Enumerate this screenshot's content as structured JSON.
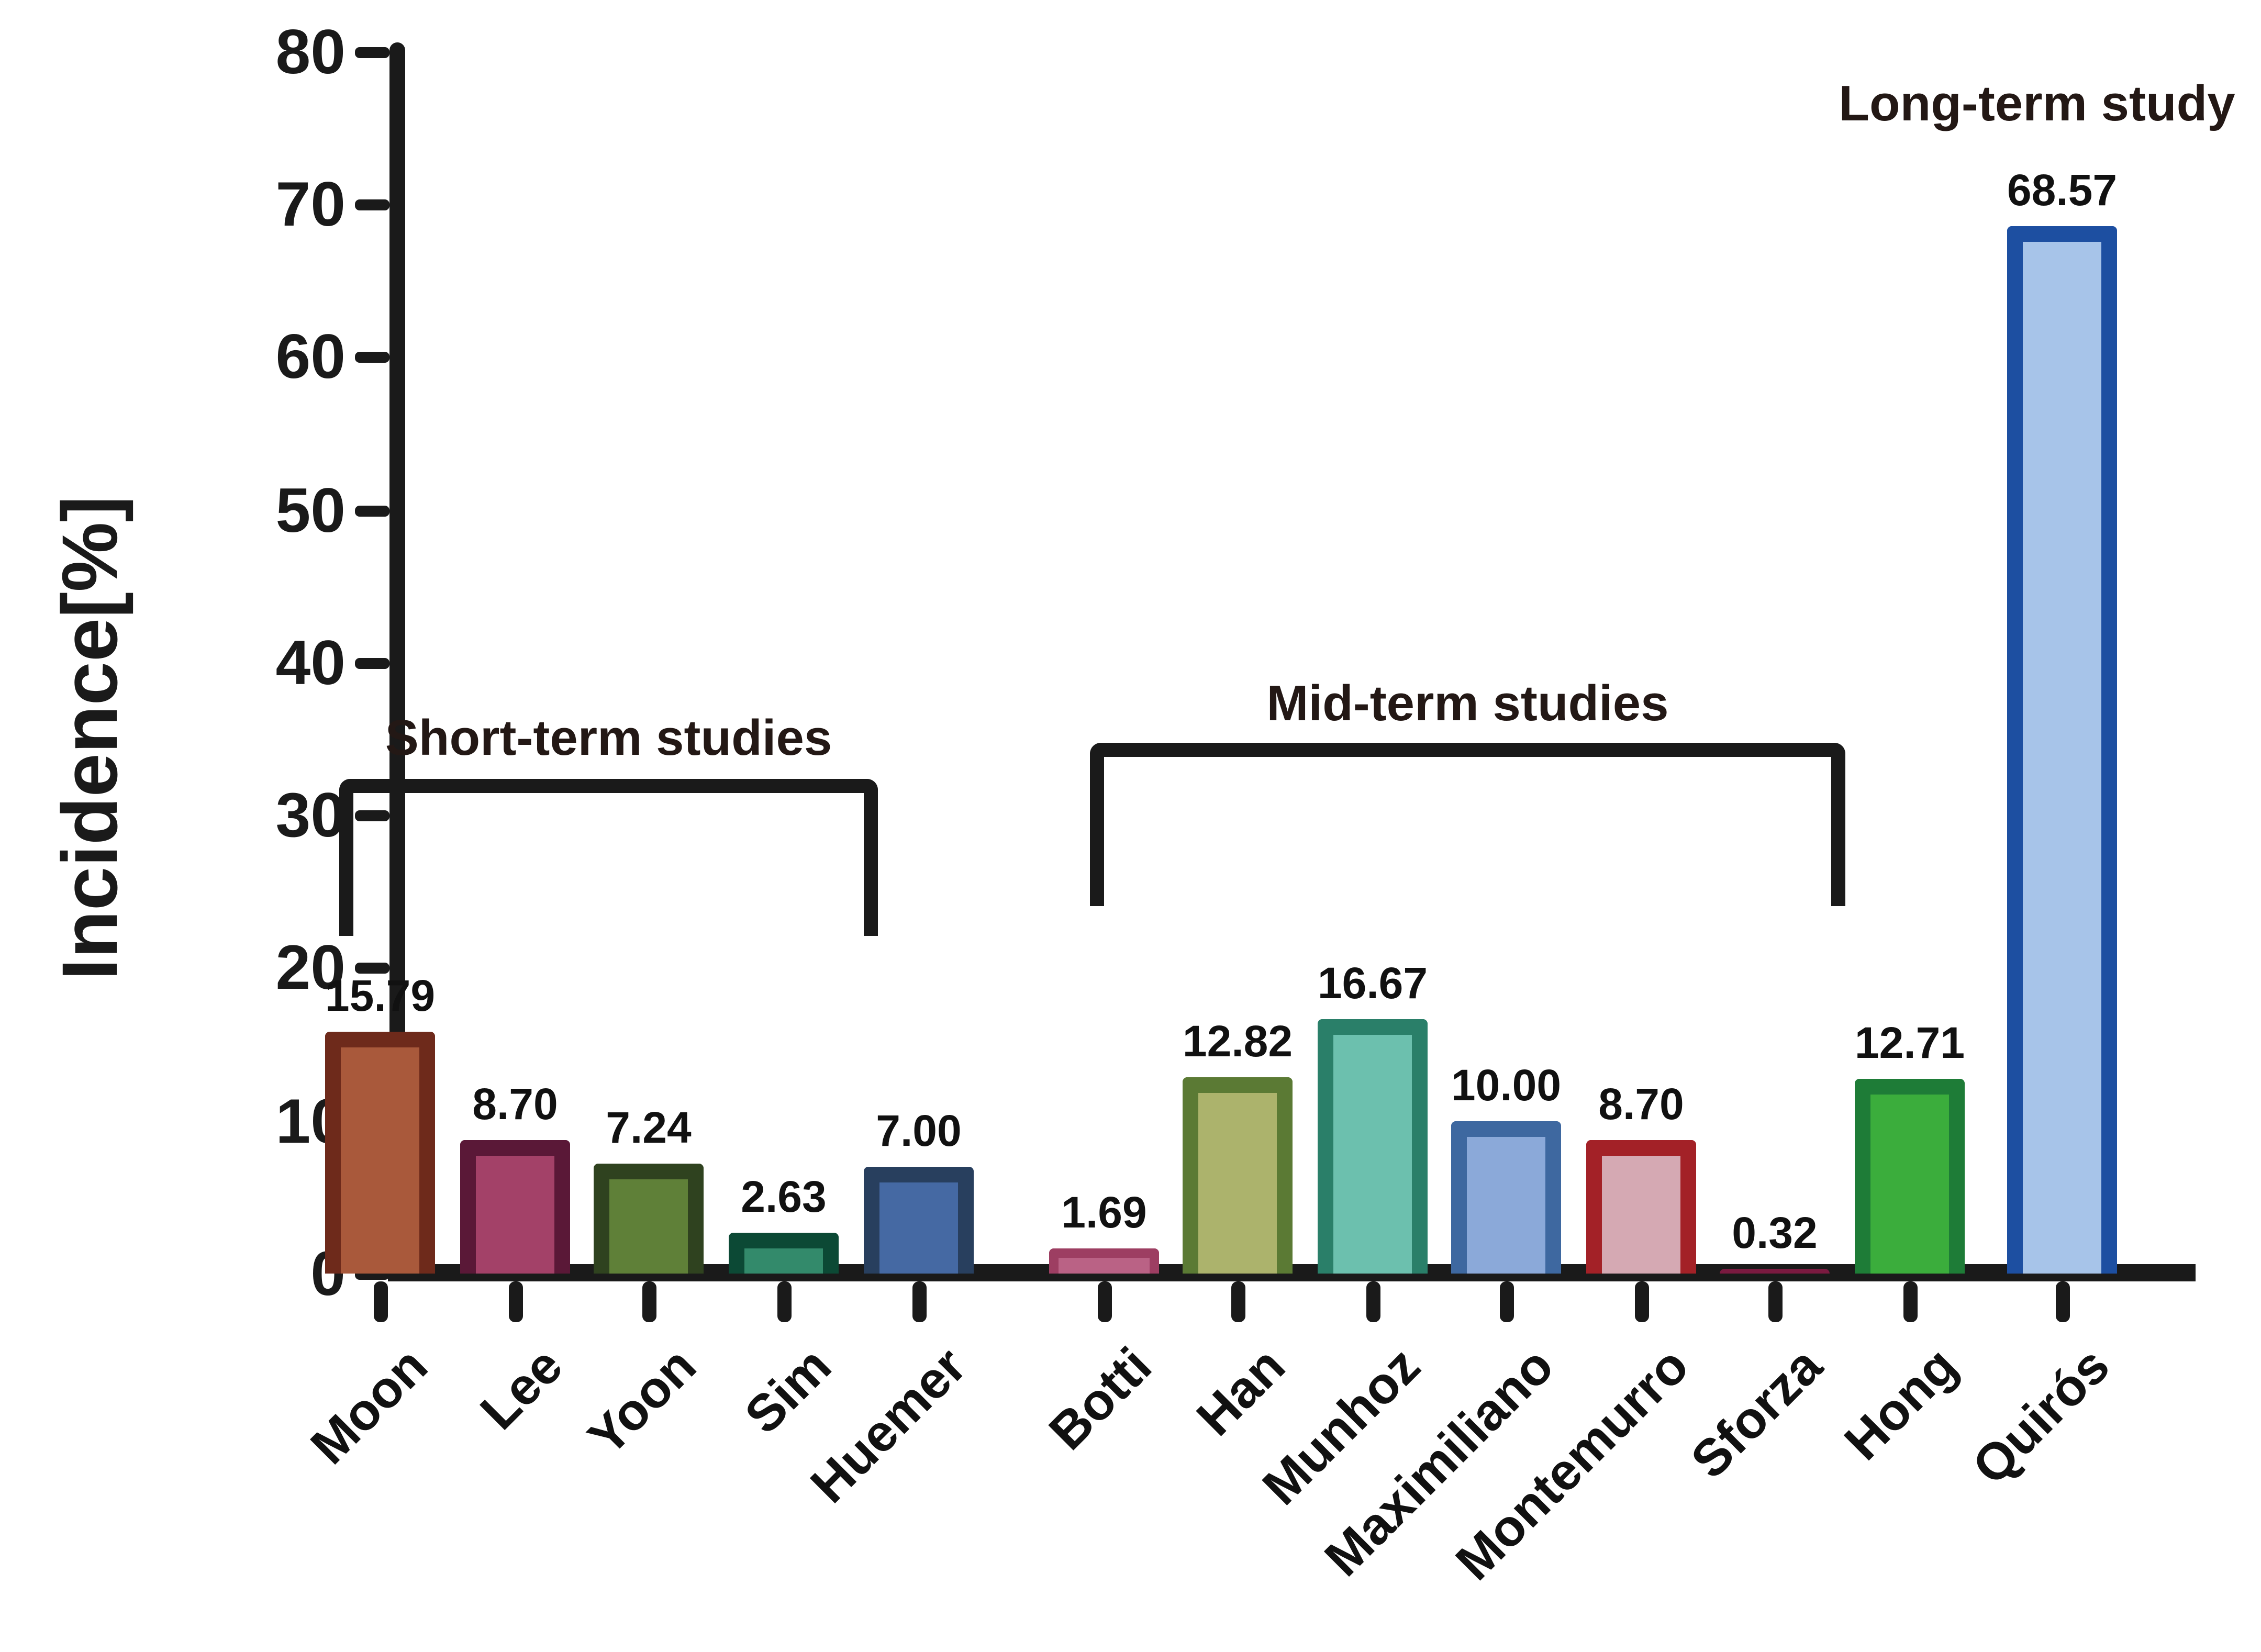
{
  "chart_data": {
    "type": "bar",
    "title": "",
    "xlabel": "",
    "ylabel": "Incidence[%]",
    "ylim": [
      0,
      80
    ],
    "yticks": [
      0,
      10,
      20,
      30,
      40,
      50,
      60,
      70,
      80
    ],
    "grid": false,
    "legend": false,
    "bar_style": "thick dark outline with lighter interior fill, value labels above bars, x labels rotated 45 degrees",
    "categories": [
      "Moon",
      "Lee",
      "Yoon",
      "Sim",
      "Huemer",
      "Botti",
      "Han",
      "Munhoz",
      "Maximiliano",
      "Montemurro",
      "Sforza",
      "Hong",
      "Quirós"
    ],
    "values": [
      15.79,
      8.7,
      7.24,
      2.63,
      7.0,
      1.69,
      12.82,
      16.67,
      10.0,
      8.7,
      0.32,
      12.71,
      68.57
    ],
    "bars": [
      {
        "category": "Moon",
        "value": 15.79,
        "value_label": "15.79",
        "outer_color": "#6E2A1B",
        "inner_color": "#A9593B",
        "group": "Short-term studies"
      },
      {
        "category": "Lee",
        "value": 8.7,
        "value_label": "8.70",
        "outer_color": "#5A1837",
        "inner_color": "#A34168",
        "group": "Short-term studies"
      },
      {
        "category": "Yoon",
        "value": 7.24,
        "value_label": "7.24",
        "outer_color": "#2F421F",
        "inner_color": "#5F8038",
        "group": "Short-term studies"
      },
      {
        "category": "Sim",
        "value": 2.63,
        "value_label": "2.63",
        "outer_color": "#0C4935",
        "inner_color": "#338A6B",
        "group": "Short-term studies"
      },
      {
        "category": "Huemer",
        "value": 7.0,
        "value_label": "7.00",
        "outer_color": "#283F5E",
        "inner_color": "#4569A3",
        "group": "Short-term studies"
      },
      {
        "category": "Botti",
        "value": 1.69,
        "value_label": "1.69",
        "outer_color": "#9D3E62",
        "inner_color": "#BA6285",
        "group": "Mid-term studies"
      },
      {
        "category": "Han",
        "value": 12.82,
        "value_label": "12.82",
        "outer_color": "#5B7A34",
        "inner_color": "#ACB36C",
        "group": "Mid-term studies"
      },
      {
        "category": "Munhoz",
        "value": 16.67,
        "value_label": "16.67",
        "outer_color": "#2A7F69",
        "inner_color": "#6CC0AE",
        "group": "Mid-term studies"
      },
      {
        "category": "Maximiliano",
        "value": 10.0,
        "value_label": "10.00",
        "outer_color": "#3E68A0",
        "inner_color": "#8BA9D9",
        "group": "Mid-term studies"
      },
      {
        "category": "Montemurro",
        "value": 8.7,
        "value_label": "8.70",
        "outer_color": "#A32127",
        "inner_color": "#D5A9B3",
        "group": "Mid-term studies"
      },
      {
        "category": "Sforza",
        "value": 0.32,
        "value_label": "0.32",
        "outer_color": "#7A1A40",
        "inner_color": "#7A1A40",
        "group": "Mid-term studies"
      },
      {
        "category": "Hong",
        "value": 12.71,
        "value_label": "12.71",
        "outer_color": "#1E7C37",
        "inner_color": "#3BAD3C",
        "group": "Mid-term studies"
      },
      {
        "category": "Quirós",
        "value": 68.57,
        "value_label": "68.57",
        "outer_color": "#1D4FA1",
        "inner_color": "#A7C4E9",
        "group": "Long-term study"
      }
    ],
    "groups": [
      {
        "label": "Short-term studies",
        "members": [
          "Moon",
          "Lee",
          "Yoon",
          "Sim",
          "Huemer"
        ]
      },
      {
        "label": "Mid-term studies",
        "members": [
          "Botti",
          "Han",
          "Munhoz",
          "Maximiliano",
          "Montemurro",
          "Sforza",
          "Hong"
        ]
      },
      {
        "label": "Long-term study",
        "members": [
          "Quirós"
        ]
      }
    ]
  }
}
